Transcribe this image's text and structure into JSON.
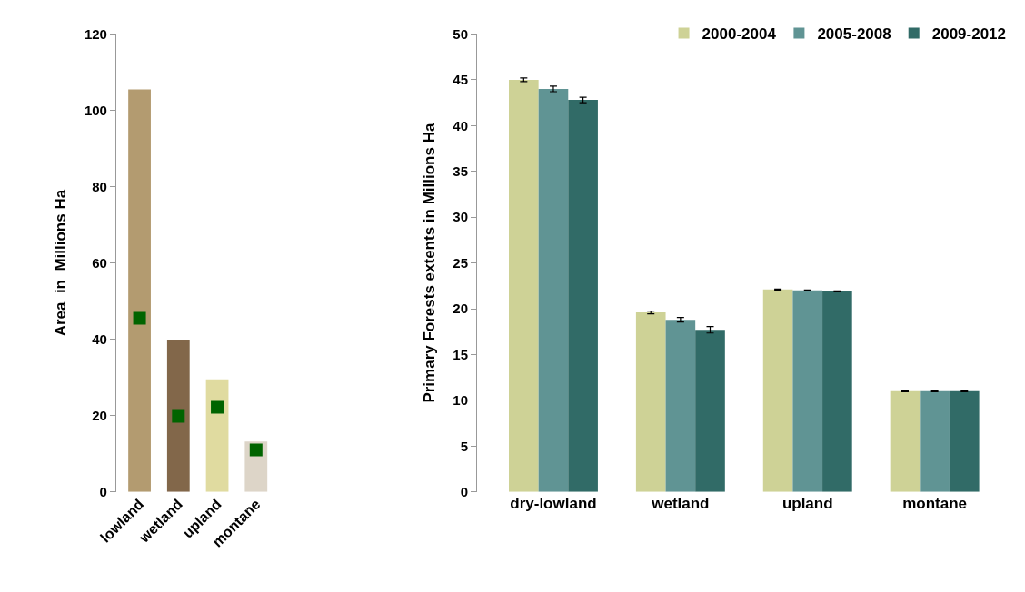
{
  "chart_data": [
    {
      "type": "bar",
      "ylabel": "Area  in  Millions Ha",
      "categories": [
        "lowland",
        "wetland",
        "upland",
        "montane"
      ],
      "series": [
        {
          "type": "bar",
          "colors": [
            "#b39b70",
            "#82674a",
            "#e0dba0",
            "#ddd5c8"
          ],
          "values": [
            105.5,
            39.7,
            29.5,
            13.2
          ]
        },
        {
          "type": "scatter",
          "color": "#006400",
          "marker": "square",
          "values": [
            45.5,
            19.8,
            22.2,
            11.0
          ]
        }
      ],
      "ylim": [
        0,
        120
      ],
      "yticks": [
        0,
        20,
        40,
        60,
        80,
        100,
        120
      ],
      "legend": false
    },
    {
      "type": "bar",
      "ylabel": "Primary Forests extents in Millions Ha",
      "categories": [
        "dry-lowland",
        "wetland",
        "upland",
        "montane"
      ],
      "series": [
        {
          "name": "2000-2004",
          "color": "#ced296",
          "values": [
            45.0,
            19.6,
            22.1,
            11.0
          ],
          "errors": [
            0.2,
            0.15,
            0.05,
            0.05
          ]
        },
        {
          "name": "2005-2008",
          "color": "#609494",
          "values": [
            44.0,
            18.8,
            22.0,
            11.0
          ],
          "errors": [
            0.3,
            0.25,
            0.05,
            0.05
          ]
        },
        {
          "name": "2009-2012",
          "color": "#316b67",
          "values": [
            42.8,
            17.7,
            21.9,
            11.0
          ],
          "errors": [
            0.3,
            0.35,
            0.05,
            0.05
          ]
        }
      ],
      "ylim": [
        0,
        50
      ],
      "yticks": [
        0,
        5,
        10,
        15,
        20,
        25,
        30,
        35,
        40,
        45,
        50
      ],
      "legend": "top right"
    }
  ]
}
